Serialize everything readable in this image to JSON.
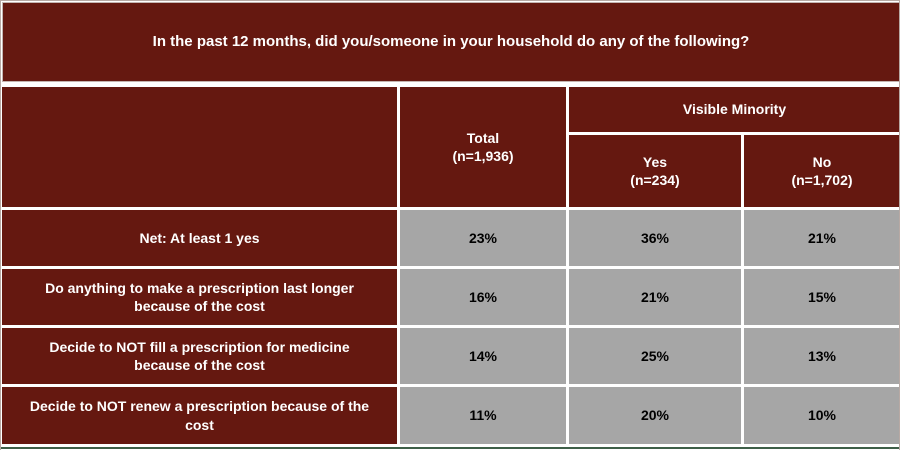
{
  "page": {
    "title": "In the past 12 months, did you/someone in your household do any of the following?"
  },
  "table": {
    "group_header": "Visible Minority",
    "columns": {
      "total": {
        "label": "Total",
        "n": "(n=1,936)"
      },
      "yes": {
        "label": "Yes",
        "n": "(n=234)"
      },
      "no": {
        "label": "No",
        "n": "(n=1,702)"
      }
    },
    "rows": [
      {
        "label": "Net: At least 1 yes",
        "total": "23%",
        "yes": "36%",
        "no": "21%"
      },
      {
        "label": "Do anything to make a prescription last longer because of the cost",
        "total": "16%",
        "yes": "21%",
        "no": "15%"
      },
      {
        "label": "Decide to NOT fill a prescription for medicine because of the cost",
        "total": "14%",
        "yes": "25%",
        "no": "13%"
      },
      {
        "label": "Decide to NOT renew a prescription because of the cost",
        "total": "11%",
        "yes": "20%",
        "no": "10%"
      }
    ]
  },
  "colors": {
    "maroon": "#651810",
    "cell_gray": "#a6a6a6",
    "text_on_dark": "#ffffff",
    "text_on_gray": "#000000",
    "bottom_rule_green": "#3e5f48"
  },
  "chart_data": {
    "type": "table",
    "title": "In the past 12 months, did you/someone in your household do any of the following?",
    "column_groups": [
      {
        "label": "Total",
        "n": 1936
      },
      {
        "label": "Visible Minority — Yes",
        "n": 234
      },
      {
        "label": "Visible Minority — No",
        "n": 1702
      }
    ],
    "rows": [
      {
        "label": "Net: At least 1 yes",
        "values_pct": [
          23,
          36,
          21
        ]
      },
      {
        "label": "Do anything to make a prescription last longer because of the cost",
        "values_pct": [
          16,
          21,
          15
        ]
      },
      {
        "label": "Decide to NOT fill a prescription for medicine because of the cost",
        "values_pct": [
          14,
          25,
          13
        ]
      },
      {
        "label": "Decide to NOT renew a prescription because of the cost",
        "values_pct": [
          11,
          20,
          10
        ]
      }
    ],
    "units": "percent of respondents"
  }
}
